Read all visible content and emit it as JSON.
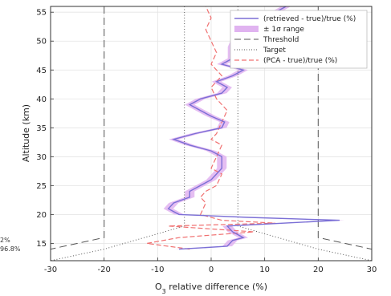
{
  "chart_data": {
    "type": "line",
    "xlabel_main": "O",
    "xlabel_sub": "3",
    "xlabel_rest": " relative difference (%)",
    "ylabel": "Altitude (km)",
    "xlim": [
      -30,
      30
    ],
    "ylim": [
      12,
      56
    ],
    "x_ticks": [
      -30,
      -20,
      -10,
      0,
      10,
      20,
      30
    ],
    "y_ticks": [
      15,
      20,
      25,
      30,
      35,
      40,
      45,
      50,
      55
    ],
    "grid": true,
    "legend_position": "top-right",
    "left_edge_text": [
      "2%",
      "96.8%"
    ],
    "series": [
      {
        "name": "(retrieved - true)/true (%)",
        "color": "#7b6fd6",
        "style": "solid",
        "points": [
          [
            -6,
            14
          ],
          [
            3,
            14.5
          ],
          [
            4,
            15.5
          ],
          [
            6,
            16
          ],
          [
            4,
            17
          ],
          [
            3,
            18
          ],
          [
            24,
            19
          ],
          [
            7,
            19.5
          ],
          [
            -6,
            20
          ],
          [
            -8,
            21
          ],
          [
            -7,
            22
          ],
          [
            -4,
            23
          ],
          [
            -4,
            24
          ],
          [
            -2,
            25
          ],
          [
            0,
            26
          ],
          [
            1,
            27
          ],
          [
            2,
            28
          ],
          [
            2,
            30
          ],
          [
            0,
            31
          ],
          [
            -4,
            32
          ],
          [
            -7,
            33
          ],
          [
            -3,
            34
          ],
          [
            2,
            35
          ],
          [
            2.5,
            36
          ],
          [
            0,
            37
          ],
          [
            -2,
            38
          ],
          [
            -4,
            39
          ],
          [
            -2,
            40
          ],
          [
            2,
            41
          ],
          [
            3,
            42
          ],
          [
            1,
            43
          ],
          [
            4,
            44
          ],
          [
            6,
            45
          ],
          [
            2,
            46
          ],
          [
            4,
            47
          ],
          [
            4,
            49
          ],
          [
            5,
            51
          ],
          [
            8,
            53
          ],
          [
            12,
            55
          ],
          [
            14,
            56
          ]
        ]
      },
      {
        "name": "± 1σ range",
        "color": "#e0b3f0",
        "style": "band",
        "halfwidth": 0.9
      },
      {
        "name": "Threshold",
        "color": "#555555",
        "style": "dashed",
        "lines": [
          [
            [
              -20,
              56
            ],
            [
              -20,
              16
            ],
            [
              -30,
              14
            ]
          ],
          [
            [
              20,
              56
            ],
            [
              20,
              16
            ],
            [
              30,
              14
            ]
          ]
        ]
      },
      {
        "name": "Target",
        "color": "#555555",
        "style": "dotted",
        "lines": [
          [
            [
              -5,
              56
            ],
            [
              -5,
              18
            ],
            [
              -20,
              14
            ],
            [
              -30,
              12
            ]
          ],
          [
            [
              5,
              56
            ],
            [
              5,
              18
            ],
            [
              20,
              14
            ],
            [
              30,
              12
            ]
          ]
        ]
      },
      {
        "name": "(PCA - true)/true (%)",
        "color": "#f07070",
        "style": "dashed",
        "points": [
          [
            -4,
            14
          ],
          [
            -12,
            15
          ],
          [
            -6,
            16
          ],
          [
            8,
            17
          ],
          [
            -8,
            18
          ],
          [
            12,
            18.5
          ],
          [
            2,
            19
          ],
          [
            -2,
            20
          ],
          [
            -1,
            22
          ],
          [
            -2,
            23
          ],
          [
            -1,
            24
          ],
          [
            1,
            25
          ],
          [
            2,
            27
          ],
          [
            0,
            28
          ],
          [
            1,
            30
          ],
          [
            2,
            32
          ],
          [
            0,
            33
          ],
          [
            1,
            34
          ],
          [
            2,
            36
          ],
          [
            3,
            38
          ],
          [
            1,
            40
          ],
          [
            0,
            42
          ],
          [
            2,
            44
          ],
          [
            0,
            46
          ],
          [
            1,
            48
          ],
          [
            0,
            50
          ],
          [
            -1,
            52
          ],
          [
            0,
            54
          ],
          [
            -1,
            56
          ]
        ]
      }
    ]
  }
}
